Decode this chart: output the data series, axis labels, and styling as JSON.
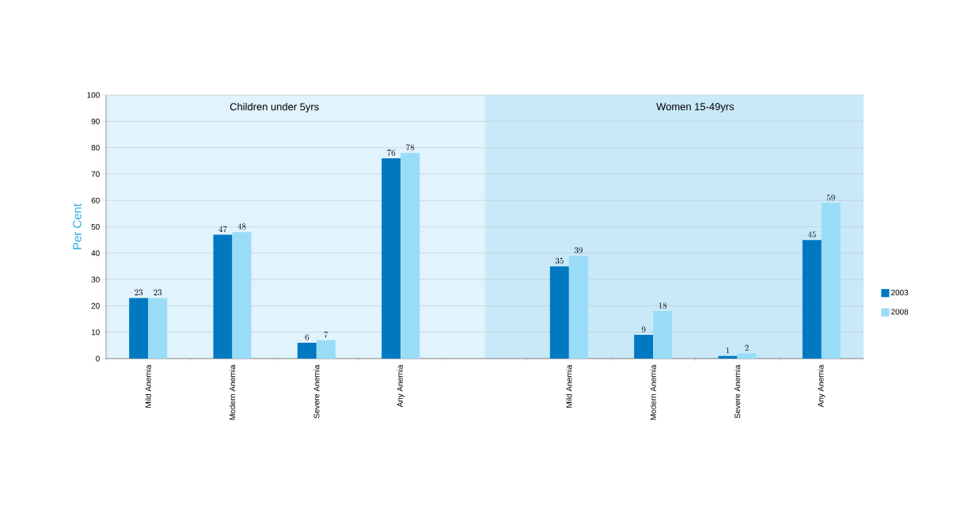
{
  "chart_data": {
    "type": "bar",
    "ylabel": "Per Cent",
    "categories": [
      "Mild Anemia",
      "Modern Anemia",
      "Severe Anemia",
      "Any Anemia",
      null,
      "Mild Anemia",
      "Modern Anemia",
      "Severe Anemia",
      "Any Anemia"
    ],
    "series": [
      {
        "name": "2003",
        "color": "#0079c1",
        "values": [
          23,
          47,
          6,
          76,
          null,
          35,
          9,
          1,
          45
        ]
      },
      {
        "name": "2008",
        "color": "#99dcf7",
        "values": [
          23,
          48,
          7,
          78,
          null,
          39,
          18,
          2,
          59
        ]
      }
    ],
    "annotations": [
      "Children under 5yrs",
      "Women 15-49yrs"
    ],
    "ylim": [
      0,
      100
    ],
    "yticks": [
      0,
      10,
      20,
      30,
      40,
      50,
      60,
      70,
      80,
      90,
      100
    ],
    "grid": "y",
    "legend": "right",
    "data_labels": true
  }
}
